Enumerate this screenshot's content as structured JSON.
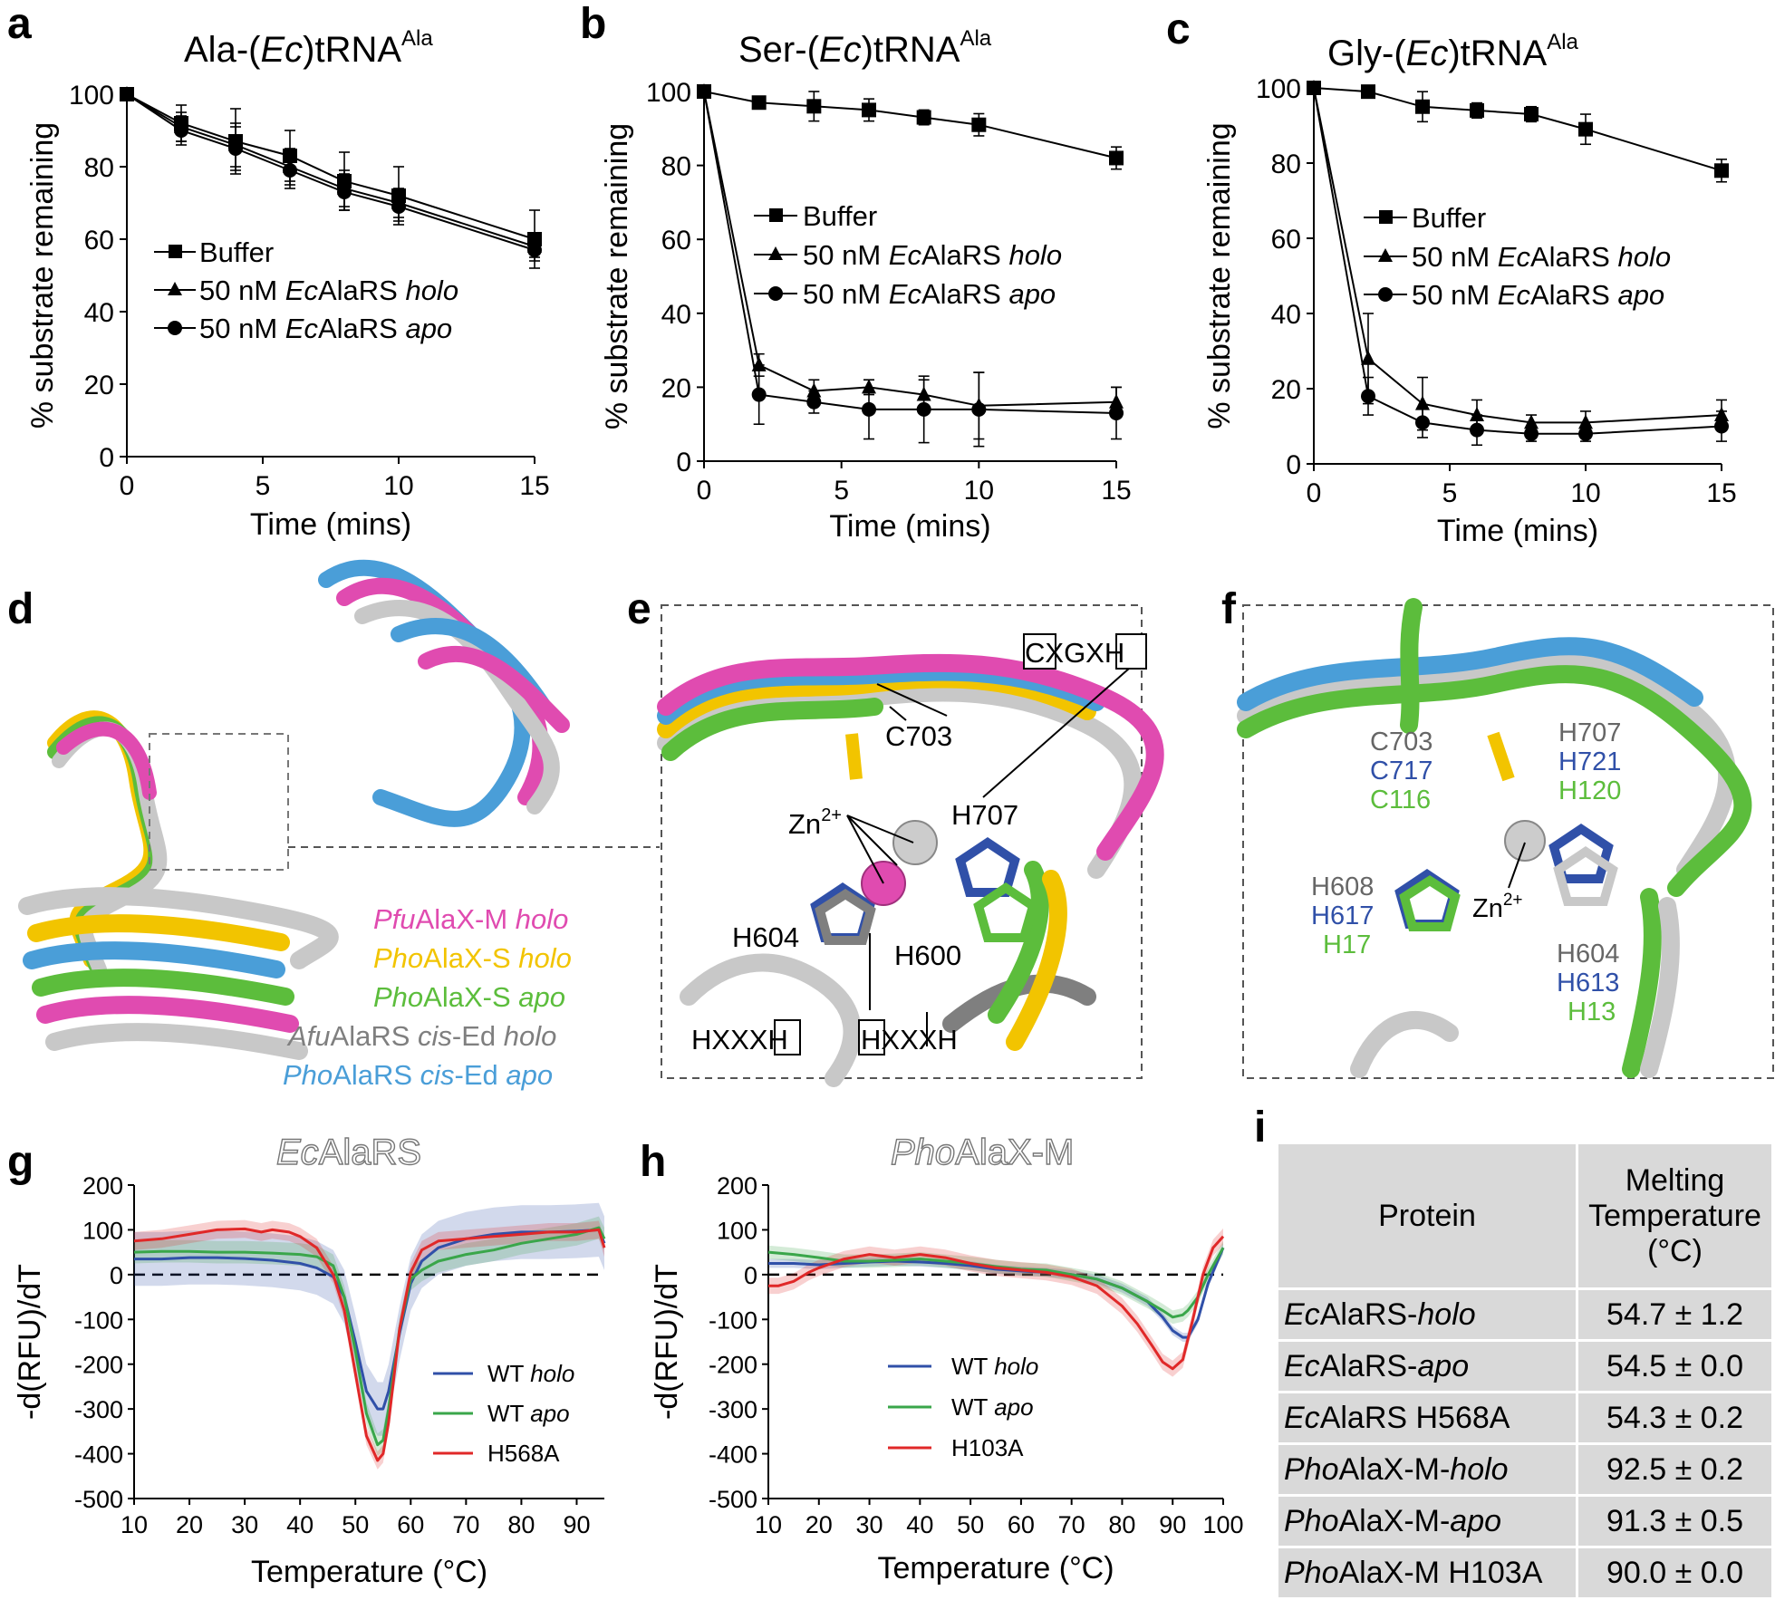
{
  "panels": {
    "a": {
      "letter": "a",
      "title_pre": "Ala-(",
      "title_it": "Ec",
      "title_post": ")tRNA",
      "title_sup": "Ala"
    },
    "b": {
      "letter": "b",
      "title_pre": "Ser-(",
      "title_it": "Ec",
      "title_post": ")tRNA",
      "title_sup": "Ala"
    },
    "c": {
      "letter": "c",
      "title_pre": "Gly-(",
      "title_it": "Ec",
      "title_post": ")tRNA",
      "title_sup": "Ala"
    },
    "d": {
      "letter": "d"
    },
    "e": {
      "letter": "e"
    },
    "f": {
      "letter": "f"
    },
    "g": {
      "letter": "g",
      "title_it": "Ec",
      "title_rest": "AlaRS"
    },
    "h": {
      "letter": "h",
      "title_it": "Pho",
      "title_rest": "AlaX-M"
    },
    "i": {
      "letter": "i"
    }
  },
  "legend_time": {
    "buffer": "Buffer",
    "holo_pre": "50 nM ",
    "holo_it1": "Ec",
    "holo_mid": "AlaRS ",
    "holo_it2": "holo",
    "apo_pre": "50 nM ",
    "apo_it1": "Ec",
    "apo_mid": "AlaRS ",
    "apo_it2": "apo"
  },
  "legend_melt_g": {
    "wt_holo": "WT ",
    "holo": "holo",
    "wt_apo": "WT ",
    "apo": "apo",
    "mut": "H568A"
  },
  "legend_melt_h": {
    "wt_holo": "WT ",
    "holo": "holo",
    "wt_apo": "WT ",
    "apo": "apo",
    "mut": "H103A"
  },
  "structure_d": {
    "legend": [
      {
        "it": "Pfu",
        "mid": "AlaX-M ",
        "it2": "holo",
        "color": "#e04bb0"
      },
      {
        "it": "Pho",
        "mid": "AlaX-S ",
        "it2": "holo",
        "color": "#f2c400"
      },
      {
        "it": "Pho",
        "mid": "AlaX-S ",
        "it2": "apo",
        "color": "#5cbd3c"
      },
      {
        "it": "Afu",
        "mid": "AlaRS ",
        "it2": "cis",
        "post": "-Ed ",
        "it3": "holo",
        "color": "#7f7f7f"
      },
      {
        "it": "Pho",
        "mid": "AlaRS ",
        "it2": "cis",
        "post": "-Ed ",
        "it3": "apo",
        "color": "#4a9ed8"
      }
    ]
  },
  "structure_e": {
    "cxgxh": "CXGXH",
    "c703": "C703",
    "h707": "H707",
    "zn": "Zn",
    "zn_sup": "2+",
    "h604": "H604",
    "h600": "H600",
    "hxxxh1": "HXXXH",
    "hxxxh2": "HXXXH"
  },
  "structure_f": {
    "c703": "C703",
    "c717": "C717",
    "c116": "C116",
    "h707": "H707",
    "h721": "H721",
    "h120": "H120",
    "h608": "H608",
    "h617": "H617",
    "h17": "H17",
    "h604": "H604",
    "h613": "H613",
    "h13": "H13",
    "zn": "Zn",
    "zn_sup": "2+"
  },
  "table_i": {
    "header_protein": "Protein",
    "header_tm_1": "Melting",
    "header_tm_2": "Temperature",
    "header_tm_3": "(°C)",
    "rows": [
      {
        "it": "Ec",
        "rest": "AlaRS-",
        "it2": "holo",
        "tail": "",
        "tm": "54.7 ± 1.2"
      },
      {
        "it": "Ec",
        "rest": "AlaRS-",
        "it2": "apo",
        "tail": "",
        "tm": "54.5 ± 0.0"
      },
      {
        "it": "Ec",
        "rest": "AlaRS H568A",
        "it2": "",
        "tail": "",
        "tm": "54.3 ± 0.2"
      },
      {
        "it": "Pho",
        "rest": "AlaX-M-",
        "it2": "holo",
        "tail": "",
        "tm": "92.5 ± 0.2"
      },
      {
        "it": "Pho",
        "rest": "AlaX-M-",
        "it2": "apo",
        "tail": "",
        "tm": "91.3 ± 0.5"
      },
      {
        "it": "Pho",
        "rest": "AlaX-M H103A",
        "it2": "",
        "tail": "",
        "tm": "90.0 ± 0.0"
      }
    ]
  },
  "colors": {
    "holo": "#3050a8",
    "apo": "#3aa64a",
    "mutant": "#e02828",
    "black": "#000000"
  },
  "chart_data": [
    {
      "type": "line",
      "panel": "a",
      "xlabel": "Time (mins)",
      "ylabel": "% substrate remaining",
      "xlim": [
        0,
        15
      ],
      "ylim": [
        0,
        100
      ],
      "xticks": [
        0,
        5,
        10,
        15
      ],
      "yticks": [
        0,
        20,
        40,
        60,
        80,
        100
      ],
      "x": [
        0,
        2,
        4,
        6,
        8,
        10,
        15
      ],
      "series": [
        {
          "name": "Buffer",
          "marker": "square",
          "values": [
            100,
            92,
            87,
            83,
            76,
            72,
            60
          ],
          "err": [
            0,
            5,
            9,
            7,
            8,
            8,
            8
          ]
        },
        {
          "name": "50 nM EcAlaRS holo",
          "marker": "triangle",
          "values": [
            100,
            91,
            86,
            80,
            74,
            70,
            58
          ],
          "err": [
            0,
            4,
            6,
            5,
            5,
            4,
            3
          ]
        },
        {
          "name": "50 nM EcAlaRS apo",
          "marker": "circle",
          "values": [
            100,
            90,
            85,
            79,
            73,
            69,
            57
          ],
          "err": [
            0,
            4,
            6,
            5,
            5,
            4,
            3
          ]
        }
      ]
    },
    {
      "type": "line",
      "panel": "b",
      "xlabel": "Time (mins)",
      "ylabel": "% substrate remaining",
      "xlim": [
        0,
        15
      ],
      "ylim": [
        0,
        100
      ],
      "xticks": [
        0,
        5,
        10,
        15
      ],
      "yticks": [
        0,
        20,
        40,
        60,
        80,
        100
      ],
      "x": [
        0,
        2,
        4,
        6,
        8,
        10,
        15
      ],
      "series": [
        {
          "name": "Buffer",
          "marker": "square",
          "values": [
            100,
            97,
            96,
            95,
            93,
            91,
            82
          ],
          "err": [
            0,
            1,
            4,
            3,
            2,
            3,
            3
          ]
        },
        {
          "name": "50 nM EcAlaRS holo",
          "marker": "triangle",
          "values": [
            100,
            26,
            19,
            20,
            18,
            15,
            16
          ],
          "err": [
            0,
            3,
            3,
            2,
            4,
            9,
            4
          ]
        },
        {
          "name": "50 nM EcAlaRS apo",
          "marker": "circle",
          "values": [
            100,
            18,
            16,
            14,
            14,
            14,
            13
          ],
          "err": [
            0,
            8,
            3,
            8,
            9,
            10,
            7
          ]
        }
      ]
    },
    {
      "type": "line",
      "panel": "c",
      "xlabel": "Time (mins)",
      "ylabel": "% substrate remaining",
      "xlim": [
        0,
        15
      ],
      "ylim": [
        0,
        100
      ],
      "xticks": [
        0,
        5,
        10,
        15
      ],
      "yticks": [
        0,
        20,
        40,
        60,
        80,
        100
      ],
      "x": [
        0,
        2,
        4,
        6,
        8,
        10,
        15
      ],
      "series": [
        {
          "name": "Buffer",
          "marker": "square",
          "values": [
            100,
            99,
            95,
            94,
            93,
            89,
            78
          ],
          "err": [
            0,
            1,
            4,
            2,
            2,
            4,
            3
          ]
        },
        {
          "name": "50 nM EcAlaRS holo",
          "marker": "triangle",
          "values": [
            100,
            28,
            16,
            13,
            11,
            11,
            13
          ],
          "err": [
            0,
            12,
            7,
            4,
            2,
            3,
            4
          ]
        },
        {
          "name": "50 nM EcAlaRS apo",
          "marker": "circle",
          "values": [
            100,
            18,
            11,
            9,
            8,
            8,
            10
          ],
          "err": [
            0,
            5,
            4,
            4,
            2,
            2,
            4
          ]
        }
      ]
    },
    {
      "type": "line",
      "panel": "g",
      "xlabel": "Temperature (°C)",
      "ylabel": "-d(RFU)/dT",
      "xlim": [
        10,
        95
      ],
      "ylim": [
        -500,
        200
      ],
      "xticks": [
        10,
        20,
        30,
        40,
        50,
        60,
        70,
        80,
        90
      ],
      "yticks": [
        200,
        100,
        0,
        -100,
        -200,
        -300,
        -400,
        -500
      ],
      "series": [
        {
          "name": "WT holo",
          "color": "#3050a8",
          "band": 60,
          "x": [
            10,
            15,
            20,
            25,
            30,
            35,
            40,
            43,
            46,
            48,
            50,
            52,
            54,
            55,
            56,
            58,
            60,
            62,
            65,
            70,
            75,
            80,
            85,
            90,
            94,
            95
          ],
          "values": [
            35,
            35,
            38,
            38,
            36,
            32,
            25,
            15,
            -5,
            -50,
            -150,
            -260,
            -300,
            -300,
            -260,
            -130,
            -20,
            30,
            60,
            80,
            90,
            95,
            95,
            97,
            100,
            70
          ]
        },
        {
          "name": "WT apo",
          "color": "#3aa64a",
          "band": 25,
          "x": [
            10,
            15,
            20,
            25,
            30,
            35,
            40,
            43,
            46,
            48,
            50,
            52,
            54,
            55,
            56,
            58,
            60,
            62,
            65,
            70,
            75,
            80,
            85,
            90,
            94,
            95
          ],
          "values": [
            50,
            52,
            52,
            50,
            50,
            48,
            45,
            40,
            20,
            -50,
            -170,
            -310,
            -380,
            -370,
            -300,
            -120,
            -10,
            10,
            30,
            45,
            55,
            70,
            80,
            90,
            105,
            80
          ]
        },
        {
          "name": "H568A",
          "color": "#e02828",
          "band": 20,
          "x": [
            10,
            15,
            20,
            25,
            30,
            33,
            35,
            38,
            40,
            43,
            46,
            48,
            50,
            52,
            54,
            55,
            56,
            58,
            60,
            62,
            65,
            70,
            75,
            80,
            85,
            90,
            94,
            95
          ],
          "values": [
            75,
            80,
            90,
            100,
            102,
            95,
            100,
            95,
            85,
            60,
            0,
            -80,
            -220,
            -360,
            -415,
            -400,
            -330,
            -120,
            5,
            55,
            75,
            80,
            85,
            90,
            95,
            95,
            100,
            60
          ]
        }
      ]
    },
    {
      "type": "line",
      "panel": "h",
      "xlabel": "Temperature (°C)",
      "ylabel": "-d(RFU)/dT",
      "xlim": [
        10,
        100
      ],
      "ylim": [
        -500,
        200
      ],
      "xticks": [
        10,
        20,
        30,
        40,
        50,
        60,
        70,
        80,
        90,
        100
      ],
      "yticks": [
        200,
        100,
        0,
        -100,
        -200,
        -300,
        -400,
        -500
      ],
      "series": [
        {
          "name": "WT holo",
          "color": "#3050a8",
          "band": 10,
          "x": [
            10,
            15,
            20,
            25,
            30,
            35,
            40,
            45,
            50,
            55,
            60,
            65,
            70,
            75,
            80,
            85,
            88,
            90,
            92,
            93,
            95,
            97,
            100
          ],
          "values": [
            25,
            25,
            22,
            25,
            28,
            30,
            28,
            25,
            20,
            12,
            8,
            5,
            0,
            -10,
            -30,
            -60,
            -95,
            -125,
            -140,
            -140,
            -100,
            -20,
            60
          ]
        },
        {
          "name": "WT apo",
          "color": "#3aa64a",
          "band": 15,
          "x": [
            10,
            15,
            20,
            25,
            30,
            35,
            40,
            45,
            50,
            55,
            60,
            65,
            70,
            75,
            80,
            85,
            88,
            90,
            92,
            93,
            95,
            97,
            100
          ],
          "values": [
            50,
            45,
            38,
            30,
            30,
            32,
            35,
            30,
            25,
            18,
            12,
            10,
            0,
            -10,
            -30,
            -60,
            -80,
            -95,
            -90,
            -80,
            -50,
            0,
            60
          ]
        },
        {
          "name": "H103A",
          "color": "#e02828",
          "band": 18,
          "x": [
            10,
            12,
            15,
            18,
            20,
            25,
            30,
            35,
            40,
            45,
            50,
            55,
            60,
            65,
            70,
            75,
            80,
            83,
            86,
            88,
            90,
            92,
            94,
            96,
            98,
            100
          ],
          "values": [
            -25,
            -25,
            -15,
            5,
            15,
            35,
            45,
            38,
            45,
            38,
            25,
            15,
            10,
            5,
            -5,
            -25,
            -70,
            -110,
            -160,
            -195,
            -210,
            -190,
            -100,
            0,
            60,
            85
          ]
        }
      ]
    }
  ]
}
